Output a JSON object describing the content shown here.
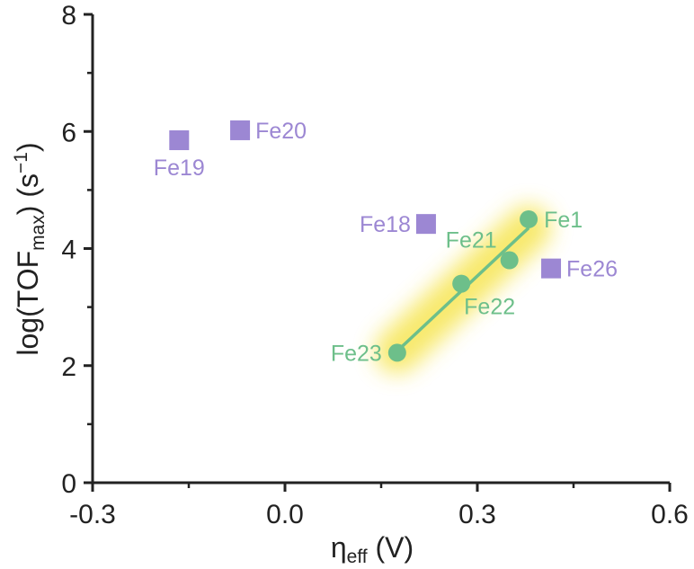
{
  "chart_data": {
    "type": "scatter",
    "xlabel": {
      "base": "η",
      "sub": "eff",
      "rest": " (V)"
    },
    "ylabel": {
      "prefix": "log(TOF",
      "sub": "max",
      "mid": ") (s",
      "sup": "−1",
      "suffix": ")"
    },
    "xlim": [
      -0.3,
      0.6
    ],
    "ylim": [
      0,
      8
    ],
    "xticks": [
      "-0.3",
      "0.0",
      "0.3",
      "0.6"
    ],
    "yticks": [
      "0",
      "2",
      "4",
      "6",
      "8"
    ],
    "grid": false,
    "colors": {
      "purple": "#9c87d3",
      "green": "#6dbf8a",
      "highlight": "#f5e23c",
      "axis": "#222222"
    },
    "series": [
      {
        "marker": "square",
        "color": "#9c87d3",
        "points": [
          {
            "label": "Fe19",
            "x": -0.165,
            "y": 5.85,
            "label_pos": "below"
          },
          {
            "label": "Fe20",
            "x": -0.07,
            "y": 6.02,
            "label_pos": "right"
          },
          {
            "label": "Fe18",
            "x": 0.22,
            "y": 4.42,
            "label_pos": "left"
          },
          {
            "label": "Fe26",
            "x": 0.415,
            "y": 3.66,
            "label_pos": "right"
          }
        ]
      },
      {
        "marker": "circle",
        "color": "#6dbf8a",
        "fit_line": true,
        "points": [
          {
            "label": "Fe1",
            "x": 0.38,
            "y": 4.5,
            "label_pos": "right"
          },
          {
            "label": "Fe21",
            "x": 0.35,
            "y": 3.8,
            "label_pos": "upper-left"
          },
          {
            "label": "Fe22",
            "x": 0.275,
            "y": 3.4,
            "label_pos": "below-right"
          },
          {
            "label": "Fe23",
            "x": 0.175,
            "y": 2.22,
            "label_pos": "left"
          }
        ]
      }
    ]
  }
}
